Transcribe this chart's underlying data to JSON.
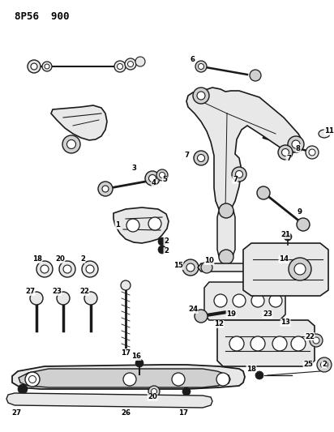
{
  "title": "8P56  900",
  "bg_color": "#ffffff",
  "fig_width": 4.12,
  "fig_height": 5.33,
  "dpi": 100,
  "lc": "#1a1a1a",
  "fc_light": "#e8e8e8",
  "fc_mid": "#d0d0d0",
  "fc_dark": "#b8b8b8"
}
